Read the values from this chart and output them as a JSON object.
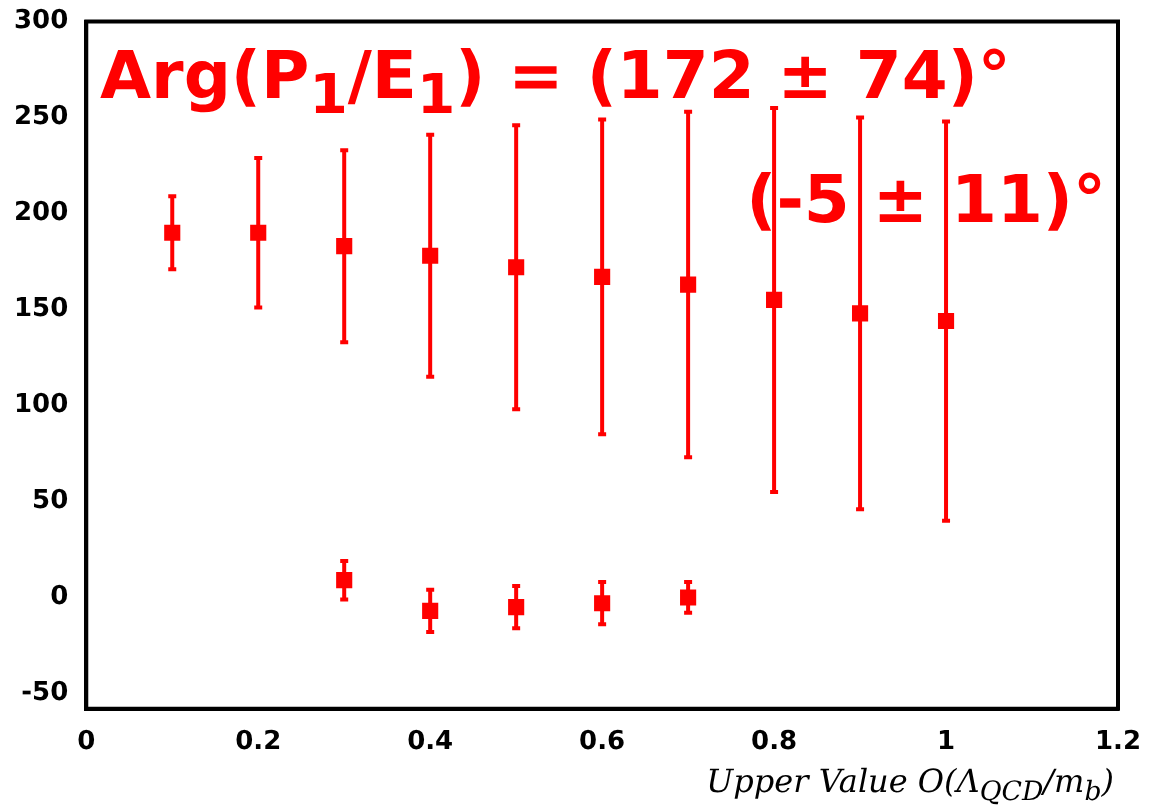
{
  "chart_data": {
    "type": "scatter",
    "xlabel": "Upper Value O(Λ$_{QCD}$/m$_{b}$)",
    "annotations": [
      "Arg(P$_{1}$/E$_{1}$) = (172 ± 74)°",
      "(-5 ± 11)°"
    ],
    "series": [
      {
        "color": "#ff0000",
        "x": [
          0.1,
          0.2,
          0.3,
          0.4,
          0.5,
          0.6,
          0.7,
          0.8,
          0.9,
          1.0
        ],
        "values": [
          190,
          190,
          183,
          178,
          172,
          167,
          163,
          155,
          148,
          144
        ],
        "errors": [
          19,
          39,
          50,
          63,
          74,
          82,
          90,
          100,
          102,
          104
        ]
      },
      {
        "color": "#ff0000",
        "x": [
          0.3,
          0.4,
          0.5,
          0.6,
          0.7
        ],
        "values": [
          9,
          -7,
          -5,
          -3,
          0
        ],
        "errors": [
          10,
          11,
          11,
          11,
          8
        ]
      }
    ],
    "marker": "square",
    "xlim": [
      0,
      1.2
    ],
    "xticks": [
      0,
      0.2,
      0.4,
      0.6,
      0.8,
      1,
      1.2
    ],
    "ylim": [
      -58,
      300
    ],
    "yticks": [
      -50,
      0,
      50,
      100,
      150,
      200,
      250,
      300
    ],
    "grid": false,
    "legend": false
  }
}
